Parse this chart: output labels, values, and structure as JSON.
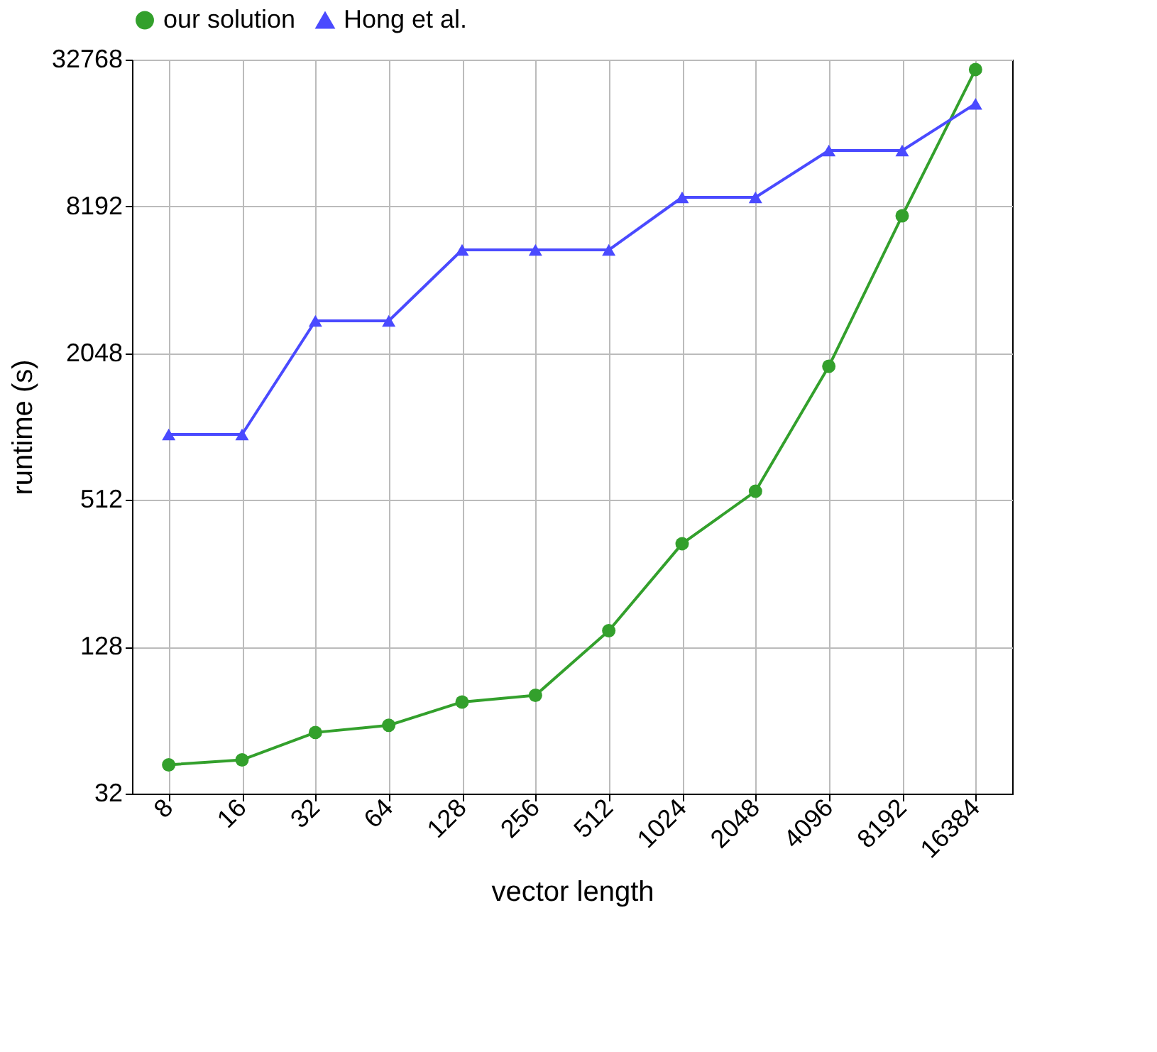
{
  "chart_data": {
    "type": "line",
    "xlabel": "vector length",
    "ylabel": "runtime (s)",
    "categories": [
      "8",
      "16",
      "32",
      "64",
      "128",
      "256",
      "512",
      "1024",
      "2048",
      "4096",
      "8192",
      "16384"
    ],
    "series": [
      {
        "name": "our solution",
        "color": "#33a02c",
        "marker": "circle",
        "values": [
          42,
          44,
          57,
          61,
          76,
          81,
          149,
          339,
          556,
          1810,
          7495,
          29850
        ]
      },
      {
        "name": "Hong et al.",
        "color": "#4a4aff",
        "marker": "triangle",
        "values": [
          951,
          951,
          2780,
          2780,
          5434,
          5434,
          5434,
          8926,
          8926,
          13890,
          13890,
          21600
        ]
      }
    ],
    "log": "y",
    "ylim": [
      32,
      32768
    ],
    "yticks": [
      32,
      128,
      512,
      2048,
      8192,
      32768
    ],
    "grid": true,
    "legend": "top",
    "line_style": "solid"
  }
}
